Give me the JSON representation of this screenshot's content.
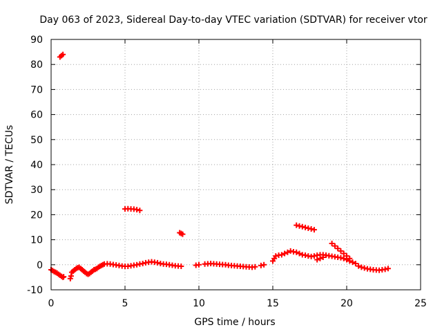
{
  "chart_data": {
    "type": "scatter",
    "title": "Day 063 of 2023, Sidereal Day-to-day VTEC variation (SDTVAR) for receiver vtor",
    "xlabel": "GPS time / hours",
    "ylabel": "SDTVAR / TECUs",
    "xlim": [
      0,
      25
    ],
    "ylim": [
      -10,
      90
    ],
    "xticks": [
      0,
      5,
      10,
      15,
      20,
      25
    ],
    "yticks": [
      -10,
      0,
      10,
      20,
      30,
      40,
      50,
      60,
      70,
      80,
      90
    ],
    "grid": true,
    "marker": "plus",
    "color": "#ff0000",
    "series": [
      {
        "name": "SDTVAR",
        "points": [
          [
            0.0,
            -2.0
          ],
          [
            0.1,
            -2.3
          ],
          [
            0.2,
            -2.7
          ],
          [
            0.3,
            -3.0
          ],
          [
            0.4,
            -3.3
          ],
          [
            0.5,
            -3.8
          ],
          [
            0.6,
            -4.2
          ],
          [
            0.7,
            -4.6
          ],
          [
            0.8,
            -5.0
          ],
          [
            0.85,
            -4.8
          ],
          [
            0.6,
            83.0
          ],
          [
            0.7,
            83.5
          ],
          [
            0.8,
            84.0
          ],
          [
            1.3,
            -5.5
          ],
          [
            1.35,
            -4.5
          ],
          [
            1.4,
            -3.0
          ],
          [
            1.5,
            -2.5
          ],
          [
            1.6,
            -2.0
          ],
          [
            1.7,
            -1.5
          ],
          [
            1.8,
            -1.2
          ],
          [
            1.9,
            -1.0
          ],
          [
            2.0,
            -1.5
          ],
          [
            2.1,
            -2.0
          ],
          [
            2.2,
            -2.5
          ],
          [
            2.3,
            -3.0
          ],
          [
            2.4,
            -3.5
          ],
          [
            2.5,
            -3.8
          ],
          [
            2.6,
            -3.5
          ],
          [
            2.7,
            -3.0
          ],
          [
            2.8,
            -2.5
          ],
          [
            2.9,
            -2.0
          ],
          [
            3.0,
            -1.8
          ],
          [
            3.1,
            -1.5
          ],
          [
            3.2,
            -1.0
          ],
          [
            3.3,
            -0.6
          ],
          [
            3.4,
            -0.3
          ],
          [
            3.5,
            0.0
          ],
          [
            3.6,
            0.3
          ],
          [
            3.8,
            0.4
          ],
          [
            4.0,
            0.3
          ],
          [
            4.2,
            0.1
          ],
          [
            4.4,
            -0.1
          ],
          [
            4.6,
            -0.3
          ],
          [
            4.8,
            -0.5
          ],
          [
            5.0,
            -0.6
          ],
          [
            5.2,
            -0.6
          ],
          [
            5.4,
            -0.4
          ],
          [
            5.6,
            -0.2
          ],
          [
            5.8,
            0.0
          ],
          [
            6.0,
            0.3
          ],
          [
            5.0,
            22.3
          ],
          [
            5.2,
            22.4
          ],
          [
            5.4,
            22.3
          ],
          [
            5.6,
            22.2
          ],
          [
            5.8,
            22.0
          ],
          [
            6.0,
            21.7
          ],
          [
            6.2,
            0.5
          ],
          [
            6.4,
            0.8
          ],
          [
            6.6,
            1.0
          ],
          [
            6.8,
            1.2
          ],
          [
            7.0,
            1.0
          ],
          [
            7.2,
            0.8
          ],
          [
            7.4,
            0.5
          ],
          [
            7.6,
            0.3
          ],
          [
            7.8,
            0.2
          ],
          [
            8.0,
            0.0
          ],
          [
            8.2,
            -0.2
          ],
          [
            8.4,
            -0.4
          ],
          [
            8.6,
            -0.5
          ],
          [
            8.8,
            -0.6
          ],
          [
            8.7,
            12.8
          ],
          [
            8.8,
            12.5
          ],
          [
            8.9,
            12.2
          ],
          [
            9.8,
            -0.2
          ],
          [
            10.0,
            0.0
          ],
          [
            10.4,
            0.3
          ],
          [
            10.6,
            0.4
          ],
          [
            10.8,
            0.5
          ],
          [
            11.0,
            0.4
          ],
          [
            11.2,
            0.3
          ],
          [
            11.4,
            0.2
          ],
          [
            11.6,
            0.1
          ],
          [
            11.8,
            0.0
          ],
          [
            12.0,
            -0.2
          ],
          [
            12.2,
            -0.3
          ],
          [
            12.4,
            -0.4
          ],
          [
            12.6,
            -0.5
          ],
          [
            12.8,
            -0.6
          ],
          [
            13.0,
            -0.7
          ],
          [
            13.2,
            -0.8
          ],
          [
            13.4,
            -0.9
          ],
          [
            13.6,
            -1.0
          ],
          [
            13.8,
            -0.8
          ],
          [
            14.2,
            -0.3
          ],
          [
            14.4,
            0.0
          ],
          [
            15.0,
            1.5
          ],
          [
            15.1,
            2.5
          ],
          [
            15.2,
            3.5
          ],
          [
            15.4,
            3.8
          ],
          [
            15.6,
            4.0
          ],
          [
            15.8,
            4.5
          ],
          [
            16.0,
            5.0
          ],
          [
            16.2,
            5.5
          ],
          [
            16.4,
            5.2
          ],
          [
            16.6,
            5.0
          ],
          [
            16.8,
            4.5
          ],
          [
            17.0,
            4.0
          ],
          [
            17.2,
            3.8
          ],
          [
            17.4,
            3.5
          ],
          [
            17.6,
            3.3
          ],
          [
            17.8,
            3.5
          ],
          [
            18.0,
            3.8
          ],
          [
            18.2,
            4.0
          ],
          [
            18.4,
            4.0
          ],
          [
            18.6,
            3.8
          ],
          [
            18.8,
            3.6
          ],
          [
            19.0,
            3.4
          ],
          [
            19.2,
            3.2
          ],
          [
            19.4,
            3.0
          ],
          [
            19.6,
            2.8
          ],
          [
            19.8,
            2.5
          ],
          [
            20.0,
            2.0
          ],
          [
            20.2,
            1.5
          ],
          [
            20.4,
            1.0
          ],
          [
            20.6,
            0.5
          ],
          [
            16.6,
            15.8
          ],
          [
            16.8,
            15.5
          ],
          [
            17.0,
            15.2
          ],
          [
            17.2,
            14.9
          ],
          [
            17.4,
            14.6
          ],
          [
            17.6,
            14.3
          ],
          [
            17.8,
            14.0
          ],
          [
            18.0,
            2.0
          ],
          [
            18.2,
            2.5
          ],
          [
            18.4,
            3.0
          ],
          [
            19.0,
            8.5
          ],
          [
            19.2,
            7.5
          ],
          [
            19.4,
            6.5
          ],
          [
            19.6,
            5.5
          ],
          [
            19.8,
            4.5
          ],
          [
            20.0,
            3.5
          ],
          [
            20.2,
            2.5
          ],
          [
            20.8,
            -0.5
          ],
          [
            21.0,
            -1.0
          ],
          [
            21.2,
            -1.3
          ],
          [
            21.4,
            -1.6
          ],
          [
            21.6,
            -1.8
          ],
          [
            21.8,
            -2.0
          ],
          [
            22.0,
            -2.1
          ],
          [
            22.2,
            -2.2
          ],
          [
            22.4,
            -2.0
          ],
          [
            22.6,
            -1.8
          ],
          [
            22.8,
            -1.5
          ]
        ]
      }
    ]
  }
}
